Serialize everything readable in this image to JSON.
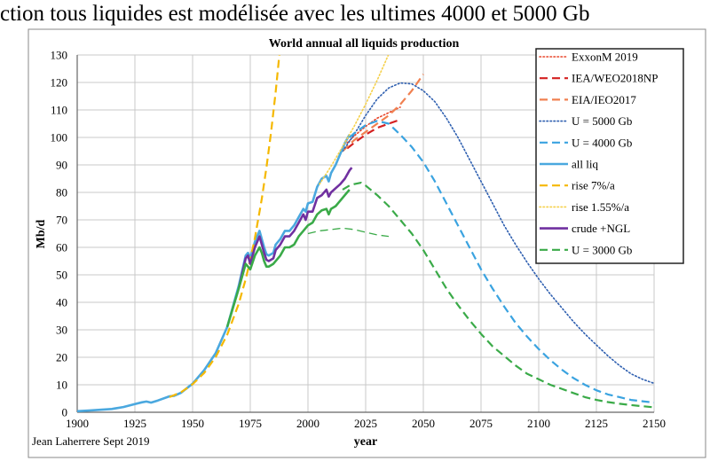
{
  "page_heading": "ction tous liquides est modélisée avec les ultimes 4000 et 5000 Gb",
  "chart_data": {
    "type": "line",
    "title": "World annual all liquids production",
    "xlabel": "year",
    "ylabel": "Mb/d",
    "credit": "Jean Laherrere Sept 2019",
    "xlim": [
      1900,
      2150
    ],
    "ylim": [
      0,
      130
    ],
    "x_ticks": [
      1900,
      1925,
      1950,
      1975,
      2000,
      2025,
      2050,
      2075,
      2100,
      2125,
      2150
    ],
    "y_ticks": [
      0,
      10,
      20,
      30,
      40,
      50,
      60,
      70,
      80,
      90,
      100,
      110,
      120,
      130
    ],
    "grid": true,
    "legend_position": "top-right",
    "series": [
      {
        "name": "ExxonM 2019",
        "color": "#e8452a",
        "dash": "dotted",
        "width": 1.6,
        "points": [
          [
            2017,
            98
          ],
          [
            2020,
            100.5
          ],
          [
            2025,
            104
          ],
          [
            2030,
            107
          ],
          [
            2035,
            109
          ],
          [
            2040,
            111
          ]
        ]
      },
      {
        "name": "IEA/WEO2018NP",
        "color": "#d42020",
        "dash": "dashed",
        "width": 2.2,
        "points": [
          [
            2017,
            96
          ],
          [
            2020,
            98
          ],
          [
            2025,
            101
          ],
          [
            2030,
            103.5
          ],
          [
            2035,
            105
          ],
          [
            2040,
            106.5
          ]
        ]
      },
      {
        "name": "EIA/IEO2017",
        "color": "#f08050",
        "dash": "dashed",
        "width": 2.2,
        "points": [
          [
            2015,
            95
          ],
          [
            2020,
            99
          ],
          [
            2025,
            102
          ],
          [
            2030,
            105
          ],
          [
            2035,
            108
          ],
          [
            2040,
            112
          ],
          [
            2045,
            117
          ],
          [
            2050,
            123
          ]
        ]
      },
      {
        "name": "U = 5000 Gb",
        "color": "#2e5fb0",
        "dash": "dotted",
        "width": 1.6,
        "points": [
          [
            2015,
            95
          ],
          [
            2020,
            101
          ],
          [
            2025,
            108
          ],
          [
            2030,
            114
          ],
          [
            2035,
            118
          ],
          [
            2040,
            119.8
          ],
          [
            2045,
            119.5
          ],
          [
            2050,
            117
          ],
          [
            2055,
            113
          ],
          [
            2060,
            107
          ],
          [
            2065,
            100
          ],
          [
            2070,
            92
          ],
          [
            2075,
            84
          ],
          [
            2080,
            76
          ],
          [
            2085,
            68
          ],
          [
            2090,
            61
          ],
          [
            2095,
            54.5
          ],
          [
            2100,
            48.5
          ],
          [
            2105,
            43
          ],
          [
            2110,
            38
          ],
          [
            2115,
            33
          ],
          [
            2120,
            28.5
          ],
          [
            2125,
            24.5
          ],
          [
            2130,
            20.5
          ],
          [
            2135,
            17
          ],
          [
            2140,
            14
          ],
          [
            2145,
            12
          ],
          [
            2150,
            10.5
          ]
        ]
      },
      {
        "name": "U = 4000 Gb",
        "color": "#3aa3e0",
        "dash": "dashed",
        "width": 2.2,
        "points": [
          [
            2018,
            100
          ],
          [
            2020,
            101.5
          ],
          [
            2025,
            104.5
          ],
          [
            2030,
            106
          ],
          [
            2035,
            105
          ],
          [
            2040,
            101
          ],
          [
            2045,
            96.5
          ],
          [
            2050,
            91
          ],
          [
            2055,
            84
          ],
          [
            2060,
            76
          ],
          [
            2065,
            68
          ],
          [
            2070,
            60
          ],
          [
            2075,
            52
          ],
          [
            2080,
            45
          ],
          [
            2085,
            38.5
          ],
          [
            2090,
            32.5
          ],
          [
            2095,
            27.5
          ],
          [
            2100,
            23
          ],
          [
            2105,
            19
          ],
          [
            2110,
            15.5
          ],
          [
            2115,
            12.5
          ],
          [
            2120,
            10
          ],
          [
            2125,
            8
          ],
          [
            2130,
            6.5
          ],
          [
            2135,
            5.5
          ],
          [
            2140,
            4.5
          ],
          [
            2145,
            4
          ],
          [
            2150,
            3.5
          ]
        ]
      },
      {
        "name": "all liq",
        "color": "#4aa8df",
        "dash": "solid",
        "width": 2.6,
        "points": [
          [
            1900,
            0.4
          ],
          [
            1905,
            0.6
          ],
          [
            1910,
            0.9
          ],
          [
            1915,
            1.2
          ],
          [
            1920,
            1.9
          ],
          [
            1925,
            3.0
          ],
          [
            1928,
            3.6
          ],
          [
            1930,
            3.9
          ],
          [
            1932,
            3.5
          ],
          [
            1935,
            4.3
          ],
          [
            1940,
            5.8
          ],
          [
            1942,
            6.0
          ],
          [
            1945,
            7.1
          ],
          [
            1950,
            10.4
          ],
          [
            1955,
            15.3
          ],
          [
            1960,
            21.5
          ],
          [
            1965,
            31
          ],
          [
            1970,
            46
          ],
          [
            1973,
            57
          ],
          [
            1974,
            58
          ],
          [
            1975,
            56
          ],
          [
            1977,
            62
          ],
          [
            1979,
            66
          ],
          [
            1980,
            63
          ],
          [
            1981,
            60
          ],
          [
            1982,
            57.5
          ],
          [
            1983,
            57
          ],
          [
            1985,
            58
          ],
          [
            1986,
            61
          ],
          [
            1988,
            63
          ],
          [
            1990,
            66
          ],
          [
            1992,
            66
          ],
          [
            1994,
            68
          ],
          [
            1996,
            71
          ],
          [
            1998,
            74
          ],
          [
            1999,
            73
          ],
          [
            2000,
            76
          ],
          [
            2002,
            76.5
          ],
          [
            2004,
            82
          ],
          [
            2006,
            85
          ],
          [
            2008,
            86
          ],
          [
            2009,
            84
          ],
          [
            2010,
            87
          ],
          [
            2012,
            90
          ],
          [
            2014,
            94
          ],
          [
            2016,
            98
          ],
          [
            2018,
            101
          ]
        ]
      },
      {
        "name": "rise 7%/a",
        "color": "#f5b800",
        "dash": "dashed",
        "width": 2.2,
        "points": [
          [
            1940,
            5.5
          ],
          [
            1945,
            7.3
          ],
          [
            1950,
            10.2
          ],
          [
            1955,
            14.3
          ],
          [
            1960,
            20.1
          ],
          [
            1965,
            28.2
          ],
          [
            1970,
            39.5
          ],
          [
            1973,
            48.4
          ],
          [
            1975,
            55.4
          ],
          [
            1977,
            63.4
          ],
          [
            1980,
            77.7
          ],
          [
            1982,
            89
          ],
          [
            1984,
            101.8
          ],
          [
            1986,
            116.5
          ],
          [
            1988,
            133.4
          ]
        ]
      },
      {
        "name": "rise 1.55%/a",
        "color": "#f5d04a",
        "dash": "dotted",
        "width": 1.6,
        "points": [
          [
            2005,
            83
          ],
          [
            2010,
            89.5
          ],
          [
            2015,
            96.6
          ],
          [
            2020,
            104
          ],
          [
            2025,
            112.1
          ],
          [
            2030,
            120.8
          ],
          [
            2035,
            130.3
          ],
          [
            2037,
            134.2
          ]
        ]
      },
      {
        "name": "crude +NGL",
        "color": "#7030a0",
        "dash": "solid",
        "width": 2.6,
        "points": [
          [
            1970,
            45
          ],
          [
            1973,
            56
          ],
          [
            1974,
            57
          ],
          [
            1975,
            54
          ],
          [
            1977,
            60
          ],
          [
            1979,
            64
          ],
          [
            1980,
            61
          ],
          [
            1981,
            58
          ],
          [
            1982,
            55.5
          ],
          [
            1983,
            55
          ],
          [
            1985,
            56
          ],
          [
            1986,
            59
          ],
          [
            1988,
            61
          ],
          [
            1990,
            64
          ],
          [
            1992,
            64
          ],
          [
            1994,
            66
          ],
          [
            1996,
            69
          ],
          [
            1998,
            72
          ],
          [
            1999,
            70
          ],
          [
            2000,
            73
          ],
          [
            2002,
            73
          ],
          [
            2004,
            78
          ],
          [
            2006,
            79
          ],
          [
            2008,
            81
          ],
          [
            2009,
            78.5
          ],
          [
            2010,
            80
          ],
          [
            2012,
            81.5
          ],
          [
            2014,
            83
          ],
          [
            2016,
            85
          ],
          [
            2018,
            88
          ],
          [
            2019,
            89
          ]
        ]
      },
      {
        "name": "U = 3000 Gb",
        "color": "#3aaa48",
        "dash": "dashed",
        "width": 2.2,
        "points": [
          [
            2015,
            81
          ],
          [
            2018,
            82.5
          ],
          [
            2020,
            83
          ],
          [
            2023,
            83.5
          ],
          [
            2025,
            82.5
          ],
          [
            2030,
            79
          ],
          [
            2035,
            75
          ],
          [
            2040,
            70
          ],
          [
            2045,
            65
          ],
          [
            2050,
            59
          ],
          [
            2055,
            52
          ],
          [
            2060,
            45
          ],
          [
            2065,
            39
          ],
          [
            2070,
            33.5
          ],
          [
            2075,
            28.5
          ],
          [
            2080,
            24
          ],
          [
            2085,
            20.5
          ],
          [
            2090,
            17
          ],
          [
            2095,
            14
          ],
          [
            2100,
            12
          ],
          [
            2105,
            10
          ],
          [
            2110,
            8.5
          ],
          [
            2115,
            7
          ],
          [
            2120,
            5.5
          ],
          [
            2125,
            4.5
          ],
          [
            2130,
            3.7
          ],
          [
            2135,
            3.1
          ],
          [
            2140,
            2.6
          ],
          [
            2145,
            2.2
          ],
          [
            2150,
            1.8
          ]
        ]
      },
      {
        "name": "all liq (green, unlabeled)",
        "color": "#3aaa48",
        "dash": "solid",
        "width": 2.6,
        "legend": false,
        "points": [
          [
            1965,
            31
          ],
          [
            1970,
            45
          ],
          [
            1973,
            54
          ],
          [
            1975,
            52
          ],
          [
            1977,
            57
          ],
          [
            1979,
            60
          ],
          [
            1980,
            58
          ],
          [
            1981,
            55
          ],
          [
            1982,
            53
          ],
          [
            1983,
            53
          ],
          [
            1985,
            54
          ],
          [
            1988,
            57
          ],
          [
            1990,
            60
          ],
          [
            1992,
            60
          ],
          [
            1994,
            61
          ],
          [
            1996,
            64
          ],
          [
            1998,
            66
          ],
          [
            2000,
            68
          ],
          [
            2002,
            69
          ],
          [
            2004,
            72
          ],
          [
            2006,
            73.5
          ],
          [
            2008,
            74
          ],
          [
            2009,
            72
          ],
          [
            2010,
            74
          ],
          [
            2012,
            75
          ],
          [
            2014,
            77
          ],
          [
            2016,
            79
          ],
          [
            2018,
            81
          ]
        ]
      },
      {
        "name": "green thin forecast (unlabeled)",
        "color": "#3aaa48",
        "dash": "dashed",
        "width": 1.3,
        "legend": false,
        "points": [
          [
            2000,
            65
          ],
          [
            2005,
            66
          ],
          [
            2010,
            66.5
          ],
          [
            2015,
            67
          ],
          [
            2020,
            66.5
          ],
          [
            2025,
            65.5
          ],
          [
            2030,
            64.5
          ],
          [
            2035,
            64
          ]
        ]
      }
    ]
  }
}
